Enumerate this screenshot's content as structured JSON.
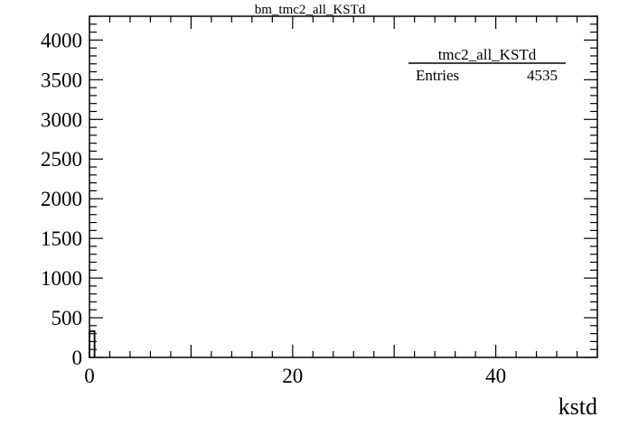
{
  "chart_data": {
    "type": "bar",
    "title": "bm_tmc2_all_KSTd",
    "xlabel": "kstd",
    "ylabel": "",
    "xlim": [
      0,
      50
    ],
    "ylim": [
      0,
      4300
    ],
    "x_ticks": [
      "0",
      "20",
      "40"
    ],
    "y_ticks": [
      "0",
      "500",
      "1000",
      "1500",
      "2000",
      "2500",
      "3000",
      "3500",
      "4000"
    ],
    "bin_width": 0.5,
    "bins": [
      {
        "x_low": 0.0,
        "x_high": 0.5,
        "value": 330
      }
    ],
    "grid": false,
    "legend": "none",
    "stats_box": {
      "name": "tmc2_all_KSTd",
      "entries_label": "Entries",
      "entries_value": "4535",
      "position": "top-right"
    },
    "line_color": "#000000"
  }
}
